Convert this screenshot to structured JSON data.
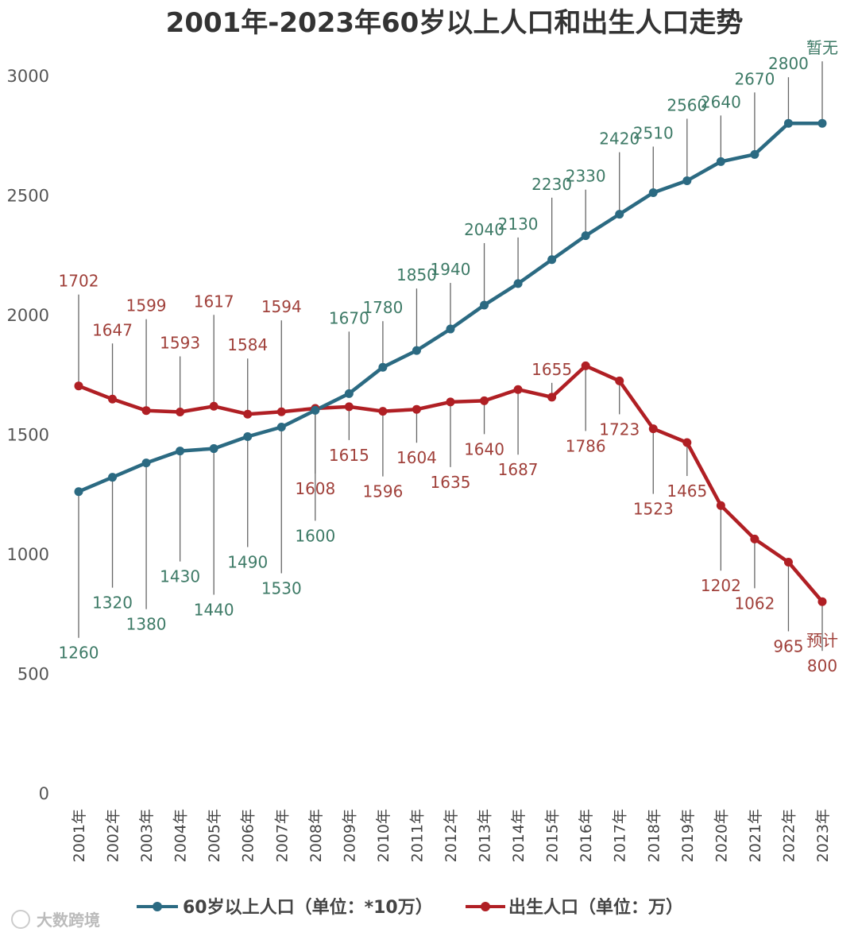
{
  "watermark": "大数跨境",
  "chart_data": {
    "type": "line",
    "title": "2001年-2023年60岁以上人口和出生人口走势",
    "categories": [
      "2001年",
      "2002年",
      "2003年",
      "2004年",
      "2005年",
      "2006年",
      "2007年",
      "2008年",
      "2009年",
      "2010年",
      "2011年",
      "2012年",
      "2013年",
      "2014年",
      "2015年",
      "2016年",
      "2017年",
      "2018年",
      "2019年",
      "2020年",
      "2021年",
      "2022年",
      "2023年"
    ],
    "ylim": [
      0,
      3000
    ],
    "yticks": [
      0,
      500,
      1000,
      1500,
      2000,
      2500,
      3000
    ],
    "grid": false,
    "legend_position": "bottom",
    "series": [
      {
        "name": "60岁以上人口（单位：*10万）",
        "color": "#2b6a82",
        "values": [
          1260,
          1320,
          1380,
          1430,
          1440,
          1490,
          1530,
          1600,
          1670,
          1780,
          1850,
          1940,
          2040,
          2130,
          2230,
          2330,
          2420,
          2510,
          2560,
          2640,
          2670,
          2800,
          2800
        ],
        "point_labels": [
          "1260",
          "1320",
          "1380",
          "1430",
          "1440",
          "1490",
          "1530",
          "1600",
          "1670",
          "1780",
          "1850",
          "1940",
          "2040",
          "2130",
          "2230",
          "2330",
          "2420",
          "2510",
          "2560",
          "2640",
          "2670",
          "2800",
          "暂无"
        ],
        "label_color": "#3d7a66"
      },
      {
        "name": "出生人口（单位：万）",
        "color": "#b01f24",
        "values": [
          1702,
          1647,
          1599,
          1593,
          1617,
          1584,
          1594,
          1608,
          1615,
          1596,
          1604,
          1635,
          1640,
          1687,
          1655,
          1786,
          1723,
          1523,
          1465,
          1202,
          1062,
          965,
          800
        ],
        "point_labels": [
          "1702",
          "1647",
          "1599",
          "1593",
          "1617",
          "1584",
          "1594",
          "1608",
          "1615",
          "1596",
          "1604",
          "1635",
          "1640",
          "1687",
          "1655",
          "1786",
          "1723",
          "1523",
          "1465",
          "1202",
          "1062",
          "965",
          "800"
        ],
        "annotations": [
          {
            "index": 22,
            "text": "预计"
          }
        ],
        "label_color": "#a0403a"
      }
    ]
  }
}
